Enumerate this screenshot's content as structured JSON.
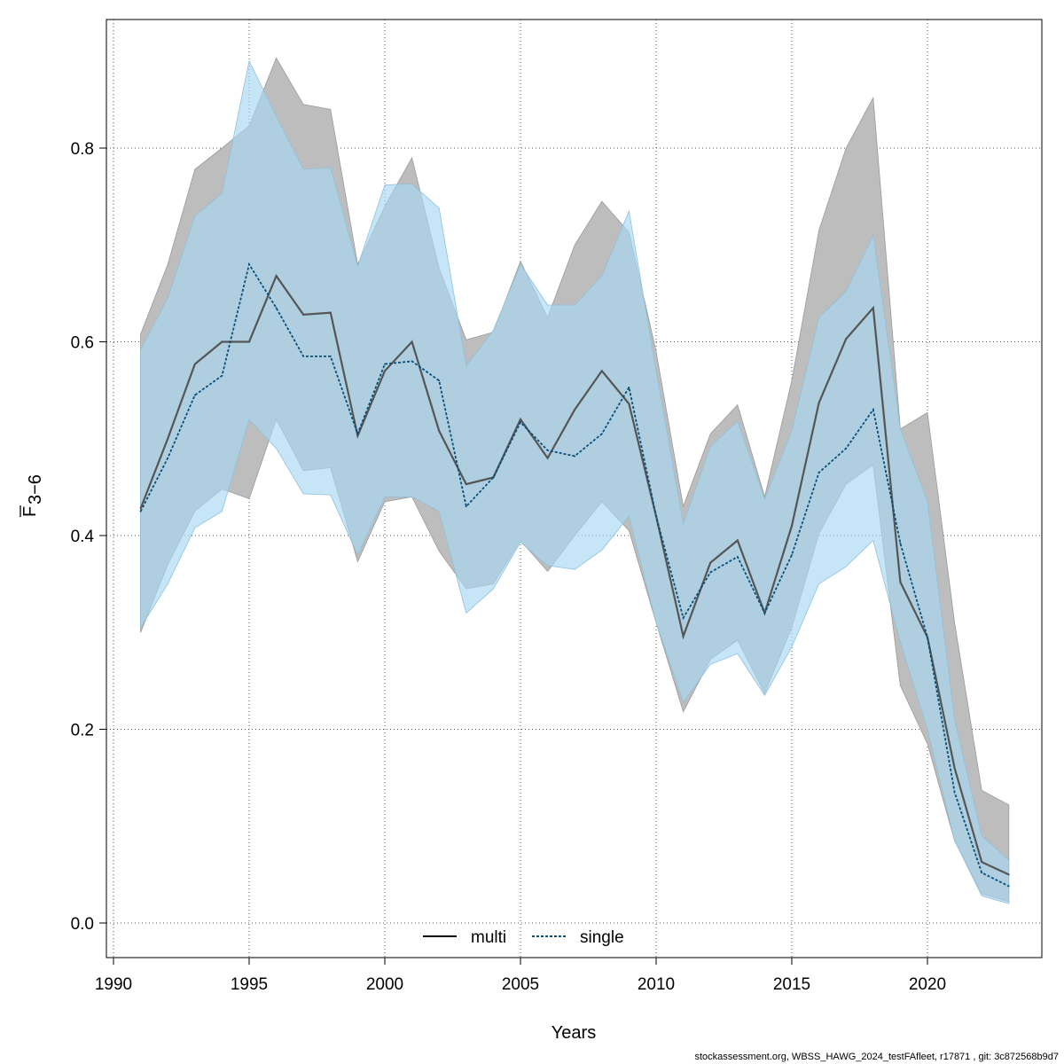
{
  "chart_data": {
    "type": "line",
    "xlabel": "Years",
    "ylabel": "F",
    "ylabel_bar": true,
    "ylabel_sub": "3−6",
    "xlim": [
      1990,
      2023
    ],
    "ylim": [
      0,
      0.9
    ],
    "xticks": [
      1990,
      1995,
      2000,
      2005,
      2010,
      2015,
      2020
    ],
    "yticks": [
      0.0,
      0.2,
      0.4,
      0.6,
      0.8
    ],
    "ytick_labels": [
      "0.0",
      "0.2",
      "0.4",
      "0.6",
      "0.8"
    ],
    "grid": true,
    "legend_position": "bottom-center",
    "x": [
      1991,
      1992,
      1993,
      1994,
      1995,
      1996,
      1997,
      1998,
      1999,
      2000,
      2001,
      2002,
      2003,
      2004,
      2005,
      2006,
      2007,
      2008,
      2009,
      2010,
      2011,
      2012,
      2013,
      2014,
      2015,
      2016,
      2017,
      2018,
      2019,
      2020,
      2021,
      2022,
      2023
    ],
    "series": [
      {
        "name": "multi",
        "line_style": "solid",
        "line_color": "#555555",
        "band_color": "#bdbdbd",
        "values": [
          0.428,
          0.5,
          0.577,
          0.6,
          0.6,
          0.668,
          0.628,
          0.63,
          0.503,
          0.57,
          0.6,
          0.508,
          0.453,
          0.46,
          0.52,
          0.48,
          0.53,
          0.57,
          0.536,
          0.42,
          0.296,
          0.372,
          0.395,
          0.32,
          0.41,
          0.537,
          0.603,
          0.635,
          0.352,
          0.295,
          0.16,
          0.063,
          0.05
        ],
        "lower": [
          0.3,
          0.37,
          0.425,
          0.448,
          0.438,
          0.52,
          0.467,
          0.47,
          0.373,
          0.435,
          0.44,
          0.384,
          0.345,
          0.35,
          0.395,
          0.363,
          0.4,
          0.435,
          0.405,
          0.31,
          0.218,
          0.272,
          0.292,
          0.237,
          0.305,
          0.402,
          0.453,
          0.473,
          0.245,
          0.185,
          0.085,
          0.03,
          0.022
        ],
        "upper": [
          0.608,
          0.68,
          0.778,
          0.8,
          0.823,
          0.893,
          0.845,
          0.84,
          0.68,
          0.74,
          0.79,
          0.676,
          0.602,
          0.61,
          0.683,
          0.625,
          0.7,
          0.745,
          0.713,
          0.59,
          0.43,
          0.505,
          0.535,
          0.44,
          0.56,
          0.715,
          0.8,
          0.852,
          0.51,
          0.527,
          0.31,
          0.137,
          0.122
        ]
      },
      {
        "name": "single",
        "line_style": "dotted",
        "line_color": "#0a4f78",
        "band_color": "#a8d8f5",
        "values": [
          0.425,
          0.48,
          0.545,
          0.565,
          0.68,
          0.635,
          0.585,
          0.585,
          0.505,
          0.577,
          0.58,
          0.56,
          0.43,
          0.46,
          0.517,
          0.488,
          0.482,
          0.505,
          0.553,
          0.42,
          0.315,
          0.362,
          0.378,
          0.32,
          0.38,
          0.465,
          0.49,
          0.53,
          0.392,
          0.295,
          0.135,
          0.052,
          0.038
        ],
        "lower": [
          0.305,
          0.35,
          0.408,
          0.425,
          0.52,
          0.49,
          0.443,
          0.442,
          0.38,
          0.44,
          0.44,
          0.425,
          0.32,
          0.345,
          0.393,
          0.369,
          0.365,
          0.385,
          0.42,
          0.31,
          0.228,
          0.267,
          0.278,
          0.235,
          0.285,
          0.35,
          0.368,
          0.395,
          0.29,
          0.2,
          0.085,
          0.028,
          0.02
        ],
        "upper": [
          0.592,
          0.645,
          0.73,
          0.753,
          0.89,
          0.833,
          0.778,
          0.78,
          0.678,
          0.762,
          0.763,
          0.738,
          0.575,
          0.612,
          0.68,
          0.638,
          0.638,
          0.668,
          0.735,
          0.57,
          0.412,
          0.492,
          0.518,
          0.438,
          0.508,
          0.625,
          0.652,
          0.71,
          0.51,
          0.435,
          0.21,
          0.09,
          0.065
        ]
      }
    ]
  },
  "footer": "stockassessment.org, WBSS_HAWG_2024_testFAfleet, r17871 , git: 3c872568b9d7"
}
